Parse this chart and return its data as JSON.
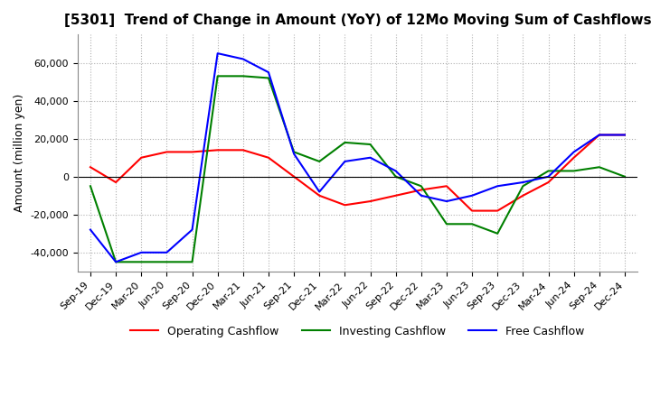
{
  "title": "[5301]  Trend of Change in Amount (YoY) of 12Mo Moving Sum of Cashflows",
  "ylabel": "Amount (million yen)",
  "x_labels": [
    "Sep-19",
    "Dec-19",
    "Mar-20",
    "Jun-20",
    "Sep-20",
    "Dec-20",
    "Mar-21",
    "Jun-21",
    "Sep-21",
    "Dec-21",
    "Mar-22",
    "Jun-22",
    "Sep-22",
    "Dec-22",
    "Mar-23",
    "Jun-23",
    "Sep-23",
    "Dec-23",
    "Mar-24",
    "Jun-24",
    "Sep-24",
    "Dec-24"
  ],
  "operating": [
    5000,
    -3000,
    10000,
    13000,
    13000,
    14000,
    14000,
    10000,
    0,
    -10000,
    -15000,
    -13000,
    -10000,
    -7000,
    -5000,
    -18000,
    -18000,
    -10000,
    -3000,
    10000,
    22000,
    22000
  ],
  "investing": [
    -5000,
    -45000,
    -45000,
    -45000,
    -45000,
    53000,
    53000,
    52000,
    13000,
    8000,
    18000,
    17000,
    0,
    -5000,
    -25000,
    -25000,
    -30000,
    -5000,
    3000,
    3000,
    5000,
    0
  ],
  "free": [
    -28000,
    -45000,
    -40000,
    -40000,
    -28000,
    65000,
    62000,
    55000,
    12000,
    -8000,
    8000,
    10000,
    3000,
    -10000,
    -13000,
    -10000,
    -5000,
    -3000,
    0,
    13000,
    22000,
    22000
  ],
  "operating_color": "#ff0000",
  "investing_color": "#008000",
  "free_color": "#0000ff",
  "ylim": [
    -50000,
    75000
  ],
  "yticks": [
    -40000,
    -20000,
    0,
    20000,
    40000,
    60000
  ],
  "background_color": "#ffffff",
  "grid_color": "#b0b0b0",
  "title_fontsize": 11,
  "axis_fontsize": 9,
  "tick_fontsize": 8
}
